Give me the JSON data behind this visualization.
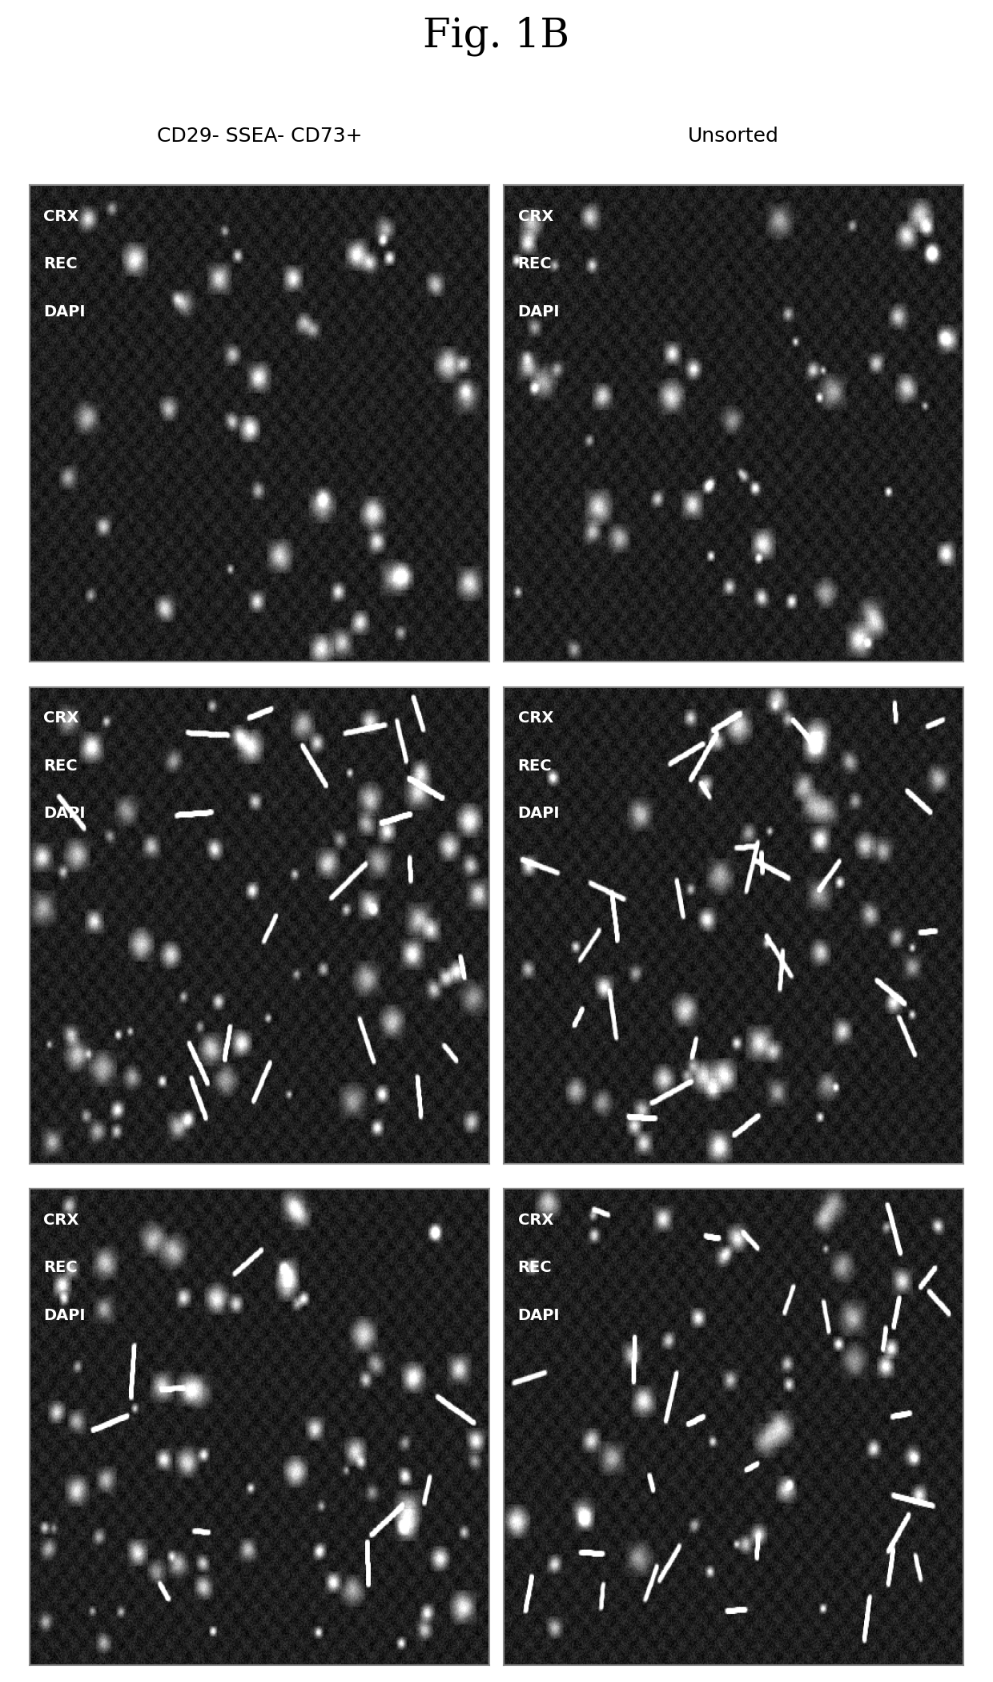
{
  "title": "Fig. 1B",
  "title_fontsize": 36,
  "col_labels": [
    "CD29- SSEA- CD73+",
    "Unsorted"
  ],
  "col_label_fontsize": 18,
  "panel_labels": [
    "CRX",
    "REC",
    "DAPI"
  ],
  "panel_label_fontsize": 14,
  "n_rows": 3,
  "n_cols": 2,
  "background_color": "#1a1a1a",
  "text_color": "#ffffff",
  "border_color": "#888888",
  "noise_seed_base": 42,
  "figure_bg": "#ffffff"
}
